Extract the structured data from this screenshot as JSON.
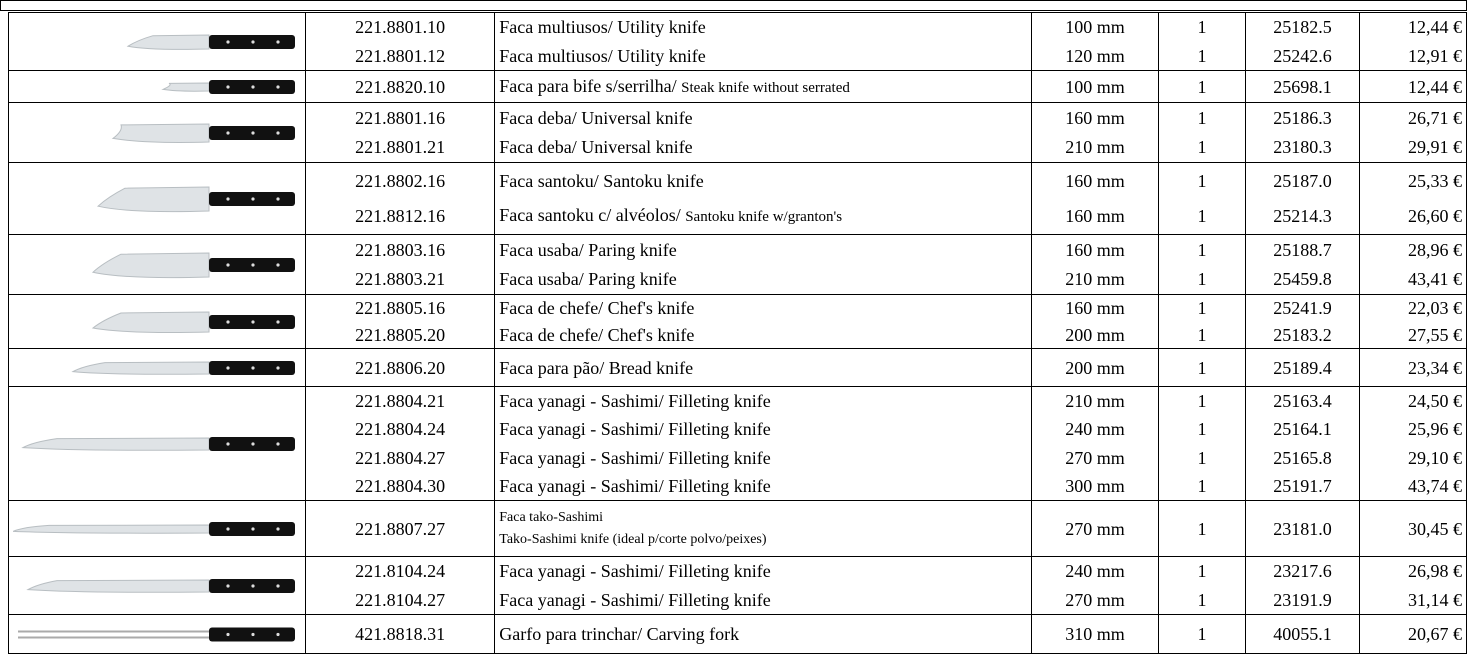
{
  "groups": [
    {
      "rows": [
        {
          "code": "221.8801.10",
          "desc": "Faca multiusos/ Utility knife",
          "size": "100 mm",
          "qty": "1",
          "ref": "25182.5",
          "price": "12,44 €"
        },
        {
          "code": "221.8801.12",
          "desc": "Faca multiusos/ Utility knife",
          "size": "120 mm",
          "qty": "1",
          "ref": "25242.6",
          "price": "12,91 €"
        }
      ]
    },
    {
      "rows": [
        {
          "code": "221.8820.10",
          "desc": [
            "Faca para bife s/serrilha/ ",
            "Steak knife without serrated"
          ],
          "size": "100 mm",
          "qty": "1",
          "ref": "25698.1",
          "price": "12,44 €"
        }
      ]
    },
    {
      "rows": [
        {
          "code": "221.8801.16",
          "desc": "Faca deba/ Universal knife",
          "size": "160 mm",
          "qty": "1",
          "ref": "25186.3",
          "price": "26,71 €"
        },
        {
          "code": "221.8801.21",
          "desc": "Faca deba/ Universal knife",
          "size": "210 mm",
          "qty": "1",
          "ref": "23180.3",
          "price": "29,91 €"
        }
      ]
    },
    {
      "rows": [
        {
          "code": "221.8802.16",
          "desc": "Faca santoku/ Santoku knife",
          "size": "160 mm",
          "qty": "1",
          "ref": "25187.0",
          "price": "25,33 €"
        },
        {
          "code": "221.8812.16",
          "desc": [
            "Faca santoku c/ alvéolos/ ",
            "Santoku knife w/granton's"
          ],
          "size": "160 mm",
          "qty": "1",
          "ref": "25214.3",
          "price": "26,60 €"
        }
      ]
    },
    {
      "rows": [
        {
          "code": "221.8803.16",
          "desc": "Faca usaba/ Paring knife",
          "size": "160 mm",
          "qty": "1",
          "ref": "25188.7",
          "price": "28,96 €"
        },
        {
          "code": "221.8803.21",
          "desc": "Faca usaba/ Paring knife",
          "size": "210 mm",
          "qty": "1",
          "ref": "25459.8",
          "price": "43,41 €"
        }
      ]
    },
    {
      "rows": [
        {
          "code": "221.8805.16",
          "desc": "Faca de chefe/ Chef's knife",
          "size": "160 mm",
          "qty": "1",
          "ref": "25241.9",
          "price": "22,03 €"
        },
        {
          "code": "221.8805.20",
          "desc": "Faca de chefe/ Chef's knife",
          "size": "200 mm",
          "qty": "1",
          "ref": "25183.2",
          "price": "27,55 €"
        }
      ]
    },
    {
      "rows": [
        {
          "code": "221.8806.20",
          "desc": "Faca para pão/ Bread knife",
          "size": "200 mm",
          "qty": "1",
          "ref": "25189.4",
          "price": "23,34 €"
        }
      ]
    },
    {
      "rows": [
        {
          "code": "221.8804.21",
          "desc": "Faca yanagi - Sashimi/ Filleting knife",
          "size": "210 mm",
          "qty": "1",
          "ref": "25163.4",
          "price": "24,50 €"
        },
        {
          "code": "221.8804.24",
          "desc": "Faca yanagi - Sashimi/ Filleting knife",
          "size": "240 mm",
          "qty": "1",
          "ref": "25164.1",
          "price": "25,96 €"
        },
        {
          "code": "221.8804.27",
          "desc": "Faca yanagi - Sashimi/ Filleting knife",
          "size": "270 mm",
          "qty": "1",
          "ref": "25165.8",
          "price": "29,10 €"
        },
        {
          "code": "221.8804.30",
          "desc": "Faca yanagi - Sashimi/ Filleting knife",
          "size": "300 mm",
          "qty": "1",
          "ref": "25191.7",
          "price": "43,74 €"
        }
      ]
    },
    {
      "rows": [
        {
          "code": "221.8807.27",
          "desc": {
            "lines": [
              "Faca tako-Sashimi",
              "Tako-Sashimi knife (ideal p/corte polvo/peixes)"
            ]
          },
          "size": "270 mm",
          "qty": "1",
          "ref": "23181.0",
          "price": "30,45 €"
        }
      ]
    },
    {
      "rows": [
        {
          "code": "221.8104.24",
          "desc": "Faca yanagi - Sashimi/ Filleting knife",
          "size": "240 mm",
          "qty": "1",
          "ref": "23217.6",
          "price": "26,98 €"
        },
        {
          "code": "221.8104.27",
          "desc": "Faca yanagi - Sashimi/ Filleting knife",
          "size": "270 mm",
          "qty": "1",
          "ref": "23191.9",
          "price": "31,14 €"
        }
      ]
    },
    {
      "rows": [
        {
          "code": "421.8818.31",
          "desc": "Garfo para trinchar/ Carving fork",
          "size": "310 mm",
          "qty": "1",
          "ref": "40055.1",
          "price": "20,67 €"
        }
      ]
    }
  ]
}
